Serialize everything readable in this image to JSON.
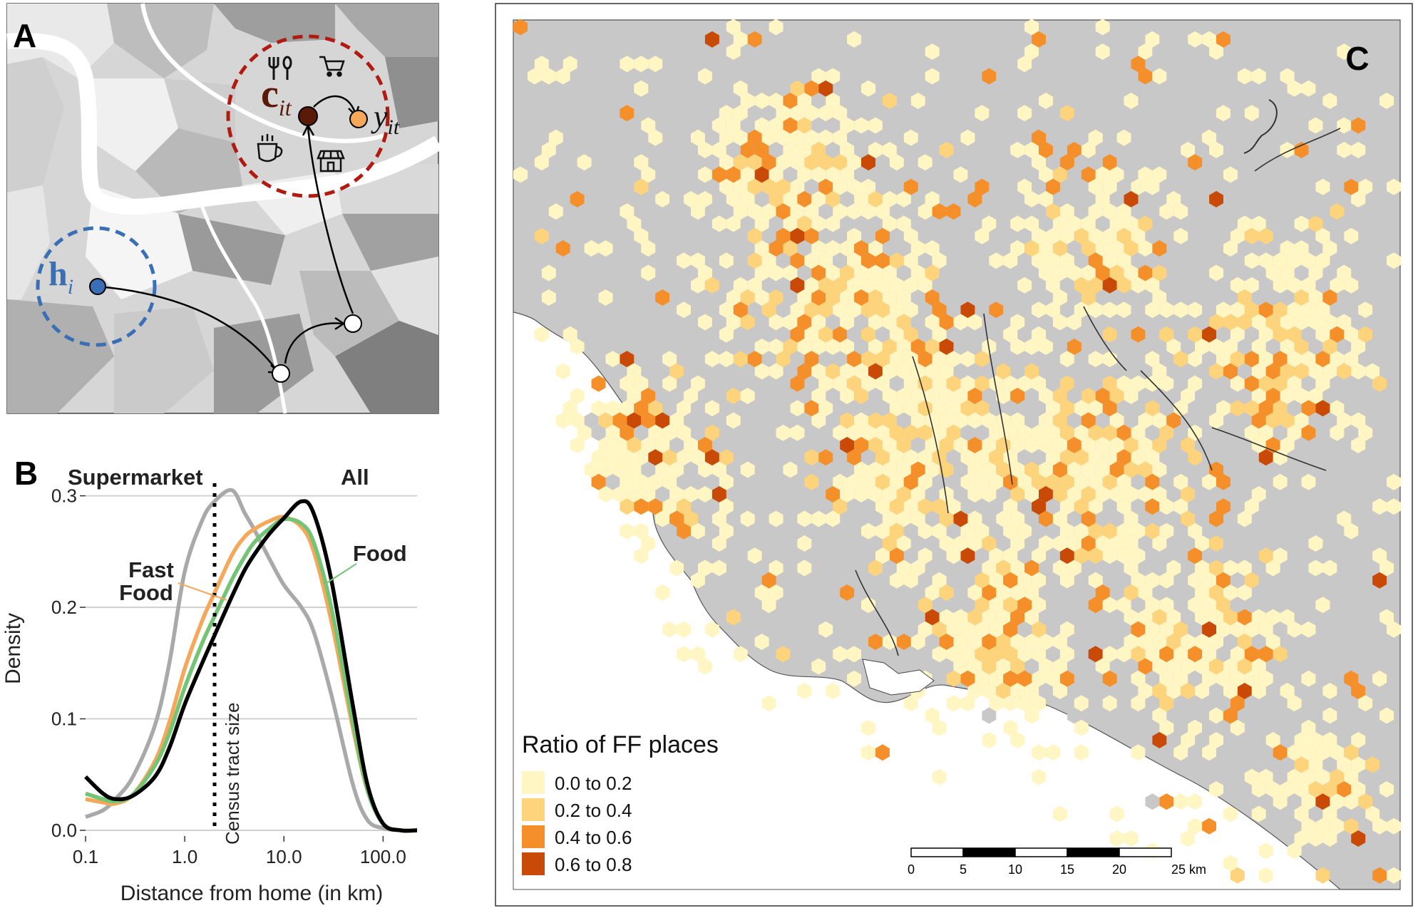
{
  "panel_a": {
    "label": "A",
    "home_label_main": "h",
    "home_label_sub": "i",
    "center_label_main": "c",
    "center_label_sub": "it",
    "target_label_main": "y",
    "target_label_sub": "it",
    "icons": [
      "fork-knife-icon",
      "shopping-cart-icon",
      "coffee-cup-icon",
      "storefront-icon"
    ],
    "colors": {
      "home": "#3a6fb5",
      "center": "#5b1a08",
      "target": "#f5a85a",
      "center_circle": "#b01a10"
    }
  },
  "chart_data": {
    "type": "line",
    "panel_label": "B",
    "xlabel": "Distance from home (in km)",
    "ylabel": "Density",
    "x_scale": "log",
    "xlim": [
      0.1,
      220
    ],
    "ylim": [
      0,
      0.31
    ],
    "x_ticks": [
      0.1,
      1.0,
      10.0,
      100.0
    ],
    "x_tick_labels": [
      "0.1",
      "1.0",
      "10.0",
      "100.0"
    ],
    "y_ticks": [
      0.0,
      0.1,
      0.2,
      0.3
    ],
    "y_tick_labels": [
      "0.0",
      "0.1",
      "0.2",
      "0.3"
    ],
    "grid": "horizontal",
    "vline": {
      "x": 2.0,
      "label": "Census tract size"
    },
    "x": [
      0.1,
      0.15,
      0.2,
      0.3,
      0.5,
      0.7,
      1.0,
      1.5,
      2.0,
      3.0,
      4.0,
      5.0,
      7.0,
      10.0,
      15.0,
      20.0,
      30.0,
      50.0,
      70.0,
      100.0,
      150.0,
      220.0
    ],
    "series": [
      {
        "name": "All",
        "color": "#000000",
        "values": [
          0.048,
          0.033,
          0.028,
          0.031,
          0.048,
          0.074,
          0.113,
          0.15,
          0.175,
          0.21,
          0.233,
          0.247,
          0.265,
          0.28,
          0.295,
          0.284,
          0.225,
          0.11,
          0.04,
          0.006,
          0.0,
          0.0
        ]
      },
      {
        "name": "Food",
        "color": "#74c476",
        "values": [
          0.033,
          0.028,
          0.026,
          0.032,
          0.058,
          0.087,
          0.128,
          0.168,
          0.192,
          0.225,
          0.245,
          0.258,
          0.27,
          0.279,
          0.275,
          0.258,
          0.2,
          0.095,
          0.035,
          0.006,
          0.0,
          0.0
        ]
      },
      {
        "name": "Fast Food",
        "color": "#f5a85a",
        "values": [
          0.028,
          0.025,
          0.024,
          0.032,
          0.062,
          0.097,
          0.145,
          0.188,
          0.213,
          0.247,
          0.263,
          0.27,
          0.277,
          0.281,
          0.272,
          0.25,
          0.188,
          0.09,
          0.035,
          0.006,
          0.0,
          0.0
        ]
      },
      {
        "name": "Supermarket",
        "color": "#a9a9a9",
        "values": [
          0.012,
          0.018,
          0.028,
          0.048,
          0.094,
          0.15,
          0.232,
          0.278,
          0.295,
          0.305,
          0.285,
          0.27,
          0.245,
          0.22,
          0.2,
          0.178,
          0.122,
          0.04,
          0.009,
          0.002,
          0.0,
          0.0
        ]
      }
    ]
  },
  "panel_c": {
    "label": "C",
    "legend_title": "Ratio of FF places",
    "legend": [
      {
        "label": "0.0 to 0.2",
        "color": "#fff6c4"
      },
      {
        "label": "0.2 to 0.4",
        "color": "#fdd37c"
      },
      {
        "label": "0.4 to 0.6",
        "color": "#f58f2a"
      },
      {
        "label": "0.6 to 0.8",
        "color": "#c94a06"
      }
    ],
    "scalebar": {
      "ticks": [
        "0",
        "5",
        "10",
        "15",
        "20",
        "25 km"
      ]
    },
    "map_colors": {
      "land_no_data": "#c8c8c8",
      "ocean": "#ffffff"
    }
  }
}
